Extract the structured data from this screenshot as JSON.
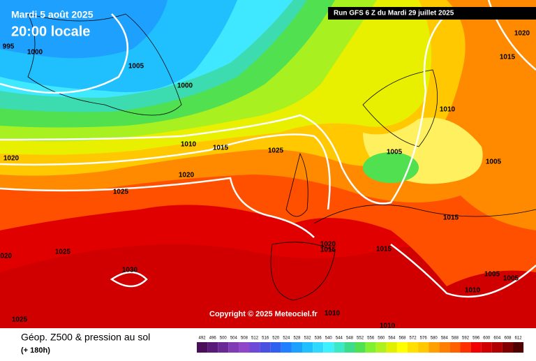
{
  "header": {
    "date": "Mardi 5 août 2025",
    "time": "20:00 locale",
    "run": "Run GFS 6 Z du Mardi 29 juillet 2025"
  },
  "copyright": "Copyright © 2025 Meteociel.fr",
  "footer": {
    "title": "Géop. Z500 & pression au sol",
    "lead": "(+ 180h)"
  },
  "isobar_labels": [
    995,
    1000,
    1005,
    1000,
    1010,
    1015,
    1020,
    1020,
    1025,
    1005,
    1010,
    1005,
    1015,
    1020,
    1025,
    1015,
    1020,
    1015,
    1015,
    1025,
    1030,
    1020,
    1005,
    1005,
    1010,
    1010,
    1010,
    1025
  ],
  "legend": {
    "values": [
      492,
      496,
      500,
      504,
      508,
      512,
      516,
      520,
      524,
      528,
      532,
      536,
      540,
      544,
      548,
      552,
      556,
      560,
      564,
      568,
      572,
      576,
      580,
      584,
      588,
      592,
      596,
      600,
      604,
      608,
      612
    ],
    "colors": [
      "#4b0f5a",
      "#5a1a78",
      "#6a2a96",
      "#7f3cb4",
      "#9046c8",
      "#6e48d6",
      "#4a50e0",
      "#3060f0",
      "#2080ff",
      "#1ea0ff",
      "#20c0ff",
      "#30d8ff",
      "#40f0ff",
      "#3ce8c8",
      "#3cdc8c",
      "#50e050",
      "#80f030",
      "#b0f020",
      "#e0f000",
      "#ffff00",
      "#ffe000",
      "#ffc800",
      "#ffa000",
      "#ff8000",
      "#ff6000",
      "#ff3000",
      "#f00000",
      "#d00000",
      "#b00000",
      "#800000",
      "#500000"
    ]
  }
}
